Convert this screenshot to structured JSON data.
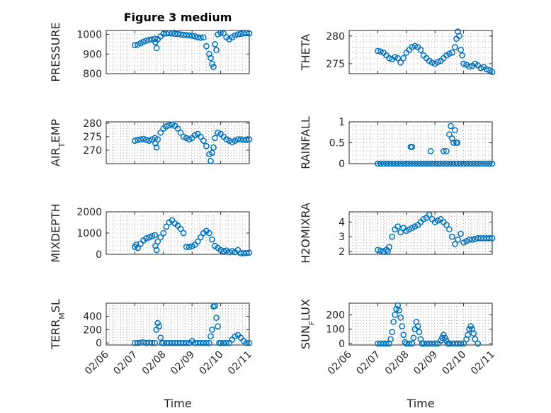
{
  "figure": {
    "title": "Figure 3 medium",
    "xlabel": "Time",
    "colors": {
      "marker": "#0072BD",
      "axis": "#262626",
      "grid": "#b0b0b0"
    }
  },
  "chart_data": [
    {
      "type": "scatter",
      "name": "pressure",
      "title": "Figure 3 medium",
      "ylabel": "PRESSURE",
      "ylabel_sub": "",
      "ylabel_tail": "",
      "xlim": [
        0,
        5
      ],
      "ylim": [
        800,
        1020
      ],
      "yticks": [
        800,
        900,
        1000
      ],
      "xticks": [
        "02/06",
        "02/07",
        "02/08",
        "02/09",
        "02/10",
        "02/11"
      ],
      "grid": true,
      "marker": "o",
      "x": [
        1.0,
        1.1,
        1.2,
        1.3,
        1.4,
        1.5,
        1.6,
        1.7,
        1.72,
        1.76,
        1.8,
        1.9,
        2.0,
        2.1,
        2.2,
        2.3,
        2.4,
        2.5,
        2.6,
        2.7,
        2.8,
        2.9,
        3.0,
        3.1,
        3.2,
        3.3,
        3.4,
        3.5,
        3.6,
        3.65,
        3.7,
        3.75,
        3.8,
        3.85,
        3.9,
        4.0,
        4.1,
        4.2,
        4.3,
        4.4,
        4.5,
        4.6,
        4.7,
        4.8,
        4.9,
        5.0
      ],
      "y": [
        945,
        948,
        955,
        962,
        968,
        972,
        975,
        978,
        960,
        930,
        975,
        990,
        1003,
        1005,
        1006,
        1005,
        1003,
        1002,
        1000,
        998,
        996,
        995,
        993,
        990,
        985,
        983,
        985,
        940,
        900,
        880,
        850,
        835,
        950,
        920,
        1000,
        1008,
        1005,
        985,
        975,
        985,
        995,
        1000,
        1003,
        1005,
        1006,
        1005
      ]
    },
    {
      "type": "scatter",
      "name": "theta",
      "ylabel": "THETA",
      "ylabel_sub": "",
      "ylabel_tail": "",
      "xlim": [
        0,
        5
      ],
      "ylim": [
        273.2,
        281
      ],
      "yticks": [
        275,
        280
      ],
      "xticks": [
        "02/06",
        "02/07",
        "02/08",
        "02/09",
        "02/10",
        "02/11"
      ],
      "grid": true,
      "marker": "o",
      "x": [
        1.0,
        1.1,
        1.2,
        1.3,
        1.4,
        1.5,
        1.6,
        1.7,
        1.8,
        1.9,
        2.0,
        2.1,
        2.2,
        2.3,
        2.4,
        2.5,
        2.6,
        2.7,
        2.8,
        2.9,
        3.0,
        3.1,
        3.2,
        3.3,
        3.4,
        3.5,
        3.6,
        3.7,
        3.75,
        3.8,
        3.85,
        3.9,
        3.95,
        4.0,
        4.1,
        4.2,
        4.3,
        4.4,
        4.5,
        4.6,
        4.7,
        4.8,
        4.9,
        5.0
      ],
      "y": [
        277.3,
        277.2,
        277.0,
        276.5,
        276.0,
        275.8,
        276.2,
        276.0,
        275.2,
        276.0,
        277.0,
        277.5,
        278.0,
        278.2,
        278.0,
        277.5,
        276.5,
        276.0,
        275.5,
        275.2,
        275.0,
        275.3,
        275.5,
        276.0,
        276.5,
        276.8,
        277.0,
        278.0,
        279.5,
        280.8,
        280.0,
        277.5,
        276.5,
        275.0,
        274.8,
        274.5,
        274.6,
        275.0,
        274.7,
        274.2,
        274.4,
        274.0,
        273.8,
        273.5
      ]
    },
    {
      "type": "scatter",
      "name": "air-temp",
      "ylabel": "AIR",
      "ylabel_sub": "T",
      "ylabel_tail": "EMP",
      "xlim": [
        0,
        5
      ],
      "ylim": [
        265,
        280.5
      ],
      "yticks": [
        270,
        275,
        280
      ],
      "xticks": [
        "02/06",
        "02/07",
        "02/08",
        "02/09",
        "02/10",
        "02/11"
      ],
      "grid": true,
      "marker": "o",
      "x": [
        1.0,
        1.1,
        1.2,
        1.3,
        1.4,
        1.5,
        1.6,
        1.7,
        1.72,
        1.76,
        1.8,
        1.9,
        2.0,
        2.1,
        2.2,
        2.3,
        2.4,
        2.5,
        2.6,
        2.7,
        2.8,
        2.9,
        3.0,
        3.1,
        3.2,
        3.3,
        3.4,
        3.5,
        3.6,
        3.65,
        3.7,
        3.75,
        3.8,
        3.9,
        4.0,
        4.1,
        4.2,
        4.3,
        4.4,
        4.5,
        4.6,
        4.7,
        4.8,
        4.9,
        5.0
      ],
      "y": [
        273.5,
        273.8,
        274.0,
        274.2,
        273.8,
        273.5,
        274.0,
        274.5,
        272.5,
        271.0,
        274.0,
        276.5,
        278.0,
        278.8,
        279.2,
        279.5,
        279.0,
        278.0,
        276.5,
        275.0,
        274.5,
        274.0,
        274.5,
        275.5,
        276.0,
        275.0,
        273.5,
        271.5,
        268.5,
        266.0,
        269.0,
        271.0,
        274.5,
        276.5,
        276.0,
        275.0,
        274.0,
        273.5,
        273.0,
        273.5,
        274.0,
        274.0,
        273.8,
        273.8,
        274.0
      ]
    },
    {
      "type": "scatter",
      "name": "rainfall",
      "ylabel": "RAINFALL",
      "ylabel_sub": "",
      "ylabel_tail": "",
      "xlim": [
        0,
        5
      ],
      "ylim": [
        0,
        1
      ],
      "yticks": [
        0,
        0.5,
        1
      ],
      "xticks": [
        "02/06",
        "02/07",
        "02/08",
        "02/09",
        "02/10",
        "02/11"
      ],
      "grid": true,
      "marker": "o",
      "x": [
        1.0,
        1.1,
        1.2,
        1.3,
        1.4,
        1.5,
        1.6,
        1.7,
        1.8,
        1.9,
        2.0,
        2.1,
        2.2,
        2.3,
        2.4,
        2.5,
        2.6,
        2.7,
        2.8,
        2.9,
        3.0,
        3.1,
        3.2,
        3.3,
        3.4,
        3.5,
        3.6,
        3.7,
        3.8,
        3.9,
        4.0,
        4.1,
        4.2,
        4.3,
        4.4,
        4.5,
        4.6,
        4.7,
        4.8,
        4.9,
        5.0,
        2.15,
        2.2,
        2.85,
        3.3,
        3.4,
        3.5,
        3.55,
        3.6,
        3.65,
        3.7,
        3.75,
        3.78
      ],
      "y": [
        0,
        0,
        0,
        0,
        0,
        0,
        0,
        0,
        0,
        0,
        0,
        0,
        0,
        0,
        0,
        0,
        0,
        0,
        0,
        0,
        0,
        0,
        0,
        0,
        0,
        0,
        0,
        0,
        0,
        0,
        0,
        0,
        0,
        0,
        0,
        0,
        0,
        0,
        0,
        0,
        0,
        0.4,
        0.4,
        0.3,
        0.3,
        0.3,
        0.7,
        0.9,
        0.6,
        0.5,
        0.8,
        0.5,
        0.5
      ]
    },
    {
      "type": "scatter",
      "name": "mixdepth",
      "ylabel": "MIXDEPTH",
      "ylabel_sub": "",
      "ylabel_tail": "",
      "xlim": [
        0,
        5
      ],
      "ylim": [
        0,
        2000
      ],
      "yticks": [
        0,
        1000,
        2000
      ],
      "xticks": [
        "02/06",
        "02/07",
        "02/08",
        "02/09",
        "02/10",
        "02/11"
      ],
      "grid": true,
      "marker": "o",
      "x": [
        1.0,
        1.05,
        1.1,
        1.2,
        1.3,
        1.4,
        1.5,
        1.6,
        1.7,
        1.72,
        1.76,
        1.8,
        1.9,
        2.0,
        2.1,
        2.2,
        2.3,
        2.4,
        2.5,
        2.6,
        2.7,
        2.8,
        2.9,
        3.0,
        3.1,
        3.2,
        3.3,
        3.4,
        3.5,
        3.6,
        3.7,
        3.8,
        3.9,
        4.0,
        4.1,
        4.2,
        4.3,
        4.4,
        4.5,
        4.6,
        4.7,
        4.8,
        4.9,
        5.0
      ],
      "y": [
        350,
        450,
        300,
        500,
        650,
        750,
        800,
        850,
        900,
        400,
        200,
        600,
        800,
        1000,
        1300,
        1500,
        1600,
        1450,
        1350,
        1200,
        1000,
        350,
        350,
        380,
        450,
        600,
        800,
        1000,
        1100,
        1000,
        700,
        400,
        300,
        200,
        150,
        180,
        100,
        150,
        100,
        200,
        50,
        50,
        60,
        80
      ]
    },
    {
      "type": "scatter",
      "name": "h2omixra",
      "ylabel": "H2OMIXRA",
      "ylabel_sub": "",
      "ylabel_tail": "",
      "xlim": [
        0,
        5
      ],
      "ylim": [
        1.8,
        4.7
      ],
      "yticks": [
        2,
        3,
        4
      ],
      "xticks": [
        "02/06",
        "02/07",
        "02/08",
        "02/09",
        "02/10",
        "02/11"
      ],
      "grid": true,
      "marker": "o",
      "x": [
        1.0,
        1.1,
        1.2,
        1.3,
        1.35,
        1.4,
        1.5,
        1.6,
        1.7,
        1.8,
        1.9,
        2.0,
        2.1,
        2.2,
        2.3,
        2.4,
        2.5,
        2.6,
        2.7,
        2.8,
        2.9,
        3.0,
        3.1,
        3.2,
        3.3,
        3.4,
        3.5,
        3.6,
        3.7,
        3.8,
        3.9,
        4.0,
        4.1,
        4.2,
        4.3,
        4.4,
        4.5,
        4.6,
        4.7,
        4.8,
        4.9,
        5.0
      ],
      "y": [
        2.1,
        2.05,
        2.0,
        2.1,
        2.0,
        2.3,
        3.0,
        3.5,
        3.7,
        3.3,
        3.6,
        3.4,
        3.5,
        3.6,
        3.7,
        3.8,
        4.0,
        4.2,
        4.3,
        4.5,
        4.2,
        4.0,
        4.1,
        4.2,
        4.0,
        3.8,
        3.5,
        3.0,
        2.5,
        2.8,
        3.2,
        2.6,
        2.7,
        2.8,
        2.8,
        2.85,
        2.9,
        2.9,
        2.9,
        2.9,
        2.9,
        2.9
      ]
    },
    {
      "type": "scatter",
      "name": "terr-msl",
      "ylabel": "TERR",
      "ylabel_sub": "M",
      "ylabel_tail": "SL",
      "xlim": [
        0,
        5
      ],
      "ylim": [
        -30,
        600
      ],
      "yticks": [
        0,
        200,
        400
      ],
      "xticks": [
        "02/06",
        "02/07",
        "02/08",
        "02/09",
        "02/10",
        "02/11"
      ],
      "grid": true,
      "marker": "o",
      "x": [
        1.0,
        1.1,
        1.2,
        1.3,
        1.4,
        1.5,
        1.6,
        1.7,
        1.75,
        1.8,
        1.85,
        1.9,
        1.95,
        2.0,
        2.1,
        2.2,
        2.3,
        2.4,
        2.5,
        2.6,
        2.7,
        2.8,
        2.9,
        3.0,
        3.1,
        3.2,
        3.3,
        3.4,
        3.5,
        3.6,
        3.65,
        3.7,
        3.75,
        3.8,
        3.85,
        3.9,
        3.95,
        4.0,
        4.1,
        4.2,
        4.3,
        4.4,
        4.5,
        4.6,
        4.7,
        4.8,
        4.9,
        5.0
      ],
      "y": [
        0,
        0,
        5,
        10,
        0,
        5,
        0,
        0,
        200,
        300,
        250,
        80,
        0,
        0,
        0,
        0,
        0,
        0,
        0,
        0,
        0,
        0,
        0,
        30,
        0,
        0,
        0,
        0,
        0,
        0,
        100,
        200,
        550,
        560,
        380,
        250,
        0,
        0,
        0,
        0,
        0,
        50,
        100,
        120,
        80,
        30,
        0,
        0
      ]
    },
    {
      "type": "scatter",
      "name": "sun-flux",
      "ylabel": "SUN",
      "ylabel_sub": "F",
      "ylabel_tail": "LUX",
      "xlim": [
        0,
        5
      ],
      "ylim": [
        -10,
        280
      ],
      "yticks": [
        0,
        100,
        200
      ],
      "xticks": [
        "02/06",
        "02/07",
        "02/08",
        "02/09",
        "02/10",
        "02/11"
      ],
      "grid": true,
      "marker": "o",
      "x": [
        1.0,
        1.1,
        1.2,
        1.3,
        1.4,
        1.45,
        1.5,
        1.55,
        1.6,
        1.65,
        1.7,
        1.75,
        1.8,
        1.85,
        1.9,
        1.95,
        2.0,
        2.1,
        2.2,
        2.25,
        2.3,
        2.35,
        2.4,
        2.45,
        2.5,
        2.55,
        2.6,
        2.7,
        2.8,
        2.9,
        3.0,
        3.1,
        3.2,
        3.25,
        3.3,
        3.35,
        3.4,
        3.45,
        3.5,
        3.6,
        3.7,
        3.8,
        3.9,
        4.0,
        4.1,
        4.15,
        4.2,
        4.25,
        4.3,
        4.35,
        4.4,
        4.5
      ],
      "y": [
        0,
        0,
        0,
        0,
        0,
        30,
        80,
        150,
        200,
        240,
        265,
        230,
        180,
        120,
        60,
        10,
        0,
        0,
        0,
        40,
        100,
        150,
        120,
        80,
        30,
        0,
        0,
        0,
        0,
        0,
        0,
        0,
        20,
        40,
        60,
        40,
        20,
        0,
        0,
        0,
        0,
        0,
        0,
        0,
        30,
        60,
        100,
        120,
        100,
        70,
        30,
        0
      ]
    }
  ]
}
